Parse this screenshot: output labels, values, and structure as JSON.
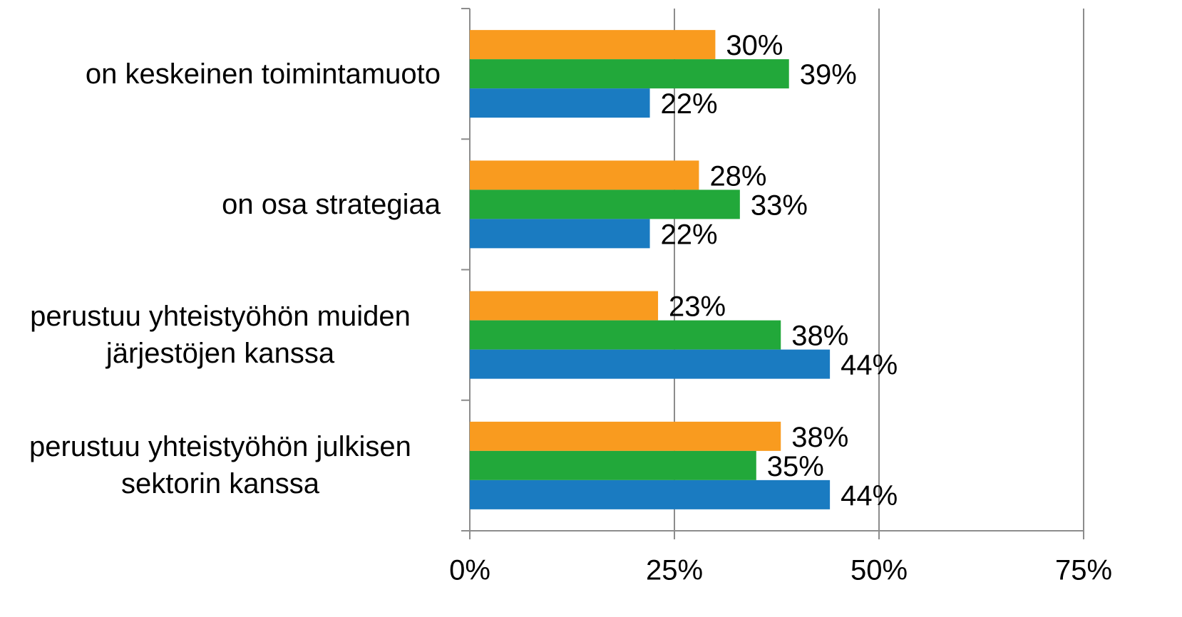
{
  "chart_data": {
    "type": "bar",
    "orientation": "horizontal",
    "categories": [
      "on keskeinen toimintamuoto",
      "on osa strategiaa",
      "perustuu yhteistyöhön muiden järjestöjen kanssa",
      "perustuu yhteistyöhön julkisen sektorin kanssa"
    ],
    "series": [
      {
        "color": "#f99b1f",
        "values": [
          30,
          28,
          23,
          38
        ],
        "value_labels": [
          "30%",
          "28%",
          "23%",
          "38%"
        ]
      },
      {
        "color": "#22a83a",
        "values": [
          39,
          33,
          38,
          35
        ],
        "value_labels": [
          "39%",
          "33%",
          "38%",
          "35%"
        ]
      },
      {
        "color": "#1a7bc1",
        "values": [
          22,
          22,
          44,
          44
        ],
        "value_labels": [
          "22%",
          "22%",
          "44%",
          "44%"
        ]
      }
    ],
    "xlim": [
      0,
      75
    ],
    "xticks": [
      {
        "value": 0,
        "label": "0%"
      },
      {
        "value": 25,
        "label": "25%"
      },
      {
        "value": 50,
        "label": "50%"
      },
      {
        "value": 75,
        "label": "75%"
      }
    ],
    "grid": true
  }
}
